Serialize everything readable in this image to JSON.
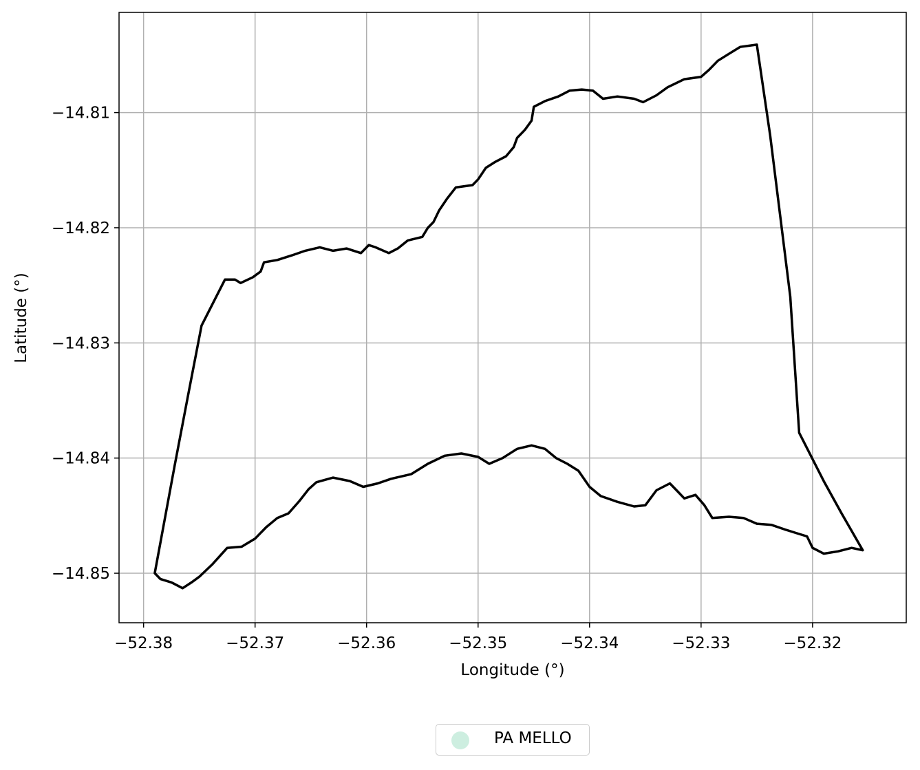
{
  "chart_data": {
    "type": "line",
    "xlabel": "Longitude (°)",
    "ylabel": "Latitude (°)",
    "xlim": [
      -52.3822,
      -52.3116
    ],
    "ylim": [
      -14.8543,
      -14.8013
    ],
    "xticks": [
      -52.38,
      -52.37,
      -52.36,
      -52.35,
      -52.34,
      -52.33,
      -52.32
    ],
    "xtick_labels": [
      "−52.38",
      "−52.37",
      "−52.36",
      "−52.35",
      "−52.34",
      "−52.33",
      "−52.32"
    ],
    "yticks": [
      -14.81,
      -14.82,
      -14.83,
      -14.84,
      -14.85
    ],
    "ytick_labels": [
      "−14.81",
      "−14.82",
      "−14.83",
      "−14.84",
      "−14.85"
    ],
    "grid": true,
    "legend_position": "bottom-center, below plot",
    "colors": {
      "outline": "#000000",
      "fill": "#cdeee0",
      "grid": "#b0b0b0"
    },
    "series": [
      {
        "name": "PA MELLO",
        "boundary": [
          [
            -52.379,
            -14.85
          ],
          [
            -52.3772,
            -14.8406
          ],
          [
            -52.376,
            -14.8345
          ],
          [
            -52.3748,
            -14.8285
          ],
          [
            -52.3727,
            -14.8245
          ],
          [
            -52.3718,
            -14.8245
          ],
          [
            -52.3713,
            -14.8248
          ],
          [
            -52.3702,
            -14.8243
          ],
          [
            -52.3695,
            -14.8238
          ],
          [
            -52.3692,
            -14.823
          ],
          [
            -52.368,
            -14.8228
          ],
          [
            -52.3667,
            -14.8224
          ],
          [
            -52.3655,
            -14.822
          ],
          [
            -52.3642,
            -14.8217
          ],
          [
            -52.363,
            -14.822
          ],
          [
            -52.3618,
            -14.8218
          ],
          [
            -52.3605,
            -14.8222
          ],
          [
            -52.3598,
            -14.8215
          ],
          [
            -52.3592,
            -14.8217
          ],
          [
            -52.358,
            -14.8222
          ],
          [
            -52.3572,
            -14.8218
          ],
          [
            -52.3563,
            -14.8211
          ],
          [
            -52.355,
            -14.8208
          ],
          [
            -52.3545,
            -14.82
          ],
          [
            -52.354,
            -14.8195
          ],
          [
            -52.3535,
            -14.8185
          ],
          [
            -52.3528,
            -14.8175
          ],
          [
            -52.352,
            -14.8165
          ],
          [
            -52.3505,
            -14.8163
          ],
          [
            -52.35,
            -14.8158
          ],
          [
            -52.3493,
            -14.8148
          ],
          [
            -52.3485,
            -14.8143
          ],
          [
            -52.3475,
            -14.8138
          ],
          [
            -52.3468,
            -14.813
          ],
          [
            -52.3465,
            -14.8122
          ],
          [
            -52.3458,
            -14.8115
          ],
          [
            -52.3452,
            -14.8107
          ],
          [
            -52.345,
            -14.8095
          ],
          [
            -52.344,
            -14.809
          ],
          [
            -52.3428,
            -14.8086
          ],
          [
            -52.3418,
            -14.8081
          ],
          [
            -52.3407,
            -14.808
          ],
          [
            -52.3397,
            -14.8081
          ],
          [
            -52.3388,
            -14.8088
          ],
          [
            -52.3375,
            -14.8086
          ],
          [
            -52.336,
            -14.8088
          ],
          [
            -52.3352,
            -14.8091
          ],
          [
            -52.334,
            -14.8085
          ],
          [
            -52.333,
            -14.8078
          ],
          [
            -52.3315,
            -14.8071
          ],
          [
            -52.33,
            -14.8069
          ],
          [
            -52.3293,
            -14.8063
          ],
          [
            -52.3285,
            -14.8055
          ],
          [
            -52.3275,
            -14.8049
          ],
          [
            -52.3265,
            -14.8043
          ],
          [
            -52.325,
            -14.8041
          ],
          [
            -52.3238,
            -14.812
          ],
          [
            -52.322,
            -14.826
          ],
          [
            -52.3212,
            -14.8378
          ],
          [
            -52.319,
            -14.842
          ],
          [
            -52.3174,
            -14.8448
          ],
          [
            -52.3155,
            -14.848
          ],
          [
            -52.3165,
            -14.8478
          ],
          [
            -52.3177,
            -14.8481
          ],
          [
            -52.319,
            -14.8483
          ],
          [
            -52.32,
            -14.8478
          ],
          [
            -52.3205,
            -14.8468
          ],
          [
            -52.3215,
            -14.8465
          ],
          [
            -52.3225,
            -14.8462
          ],
          [
            -52.3237,
            -14.8458
          ],
          [
            -52.325,
            -14.8457
          ],
          [
            -52.3262,
            -14.8452
          ],
          [
            -52.3275,
            -14.8451
          ],
          [
            -52.329,
            -14.8452
          ],
          [
            -52.3297,
            -14.8441
          ],
          [
            -52.3305,
            -14.8432
          ],
          [
            -52.3315,
            -14.8435
          ],
          [
            -52.3322,
            -14.8428
          ],
          [
            -52.3328,
            -14.8422
          ],
          [
            -52.334,
            -14.8428
          ],
          [
            -52.335,
            -14.8441
          ],
          [
            -52.336,
            -14.8442
          ],
          [
            -52.3375,
            -14.8438
          ],
          [
            -52.339,
            -14.8433
          ],
          [
            -52.34,
            -14.8425
          ],
          [
            -52.341,
            -14.8411
          ],
          [
            -52.342,
            -14.8405
          ],
          [
            -52.343,
            -14.84
          ],
          [
            -52.344,
            -14.8392
          ],
          [
            -52.3452,
            -14.8389
          ],
          [
            -52.3465,
            -14.8392
          ],
          [
            -52.3478,
            -14.84
          ],
          [
            -52.349,
            -14.8405
          ],
          [
            -52.35,
            -14.8399
          ],
          [
            -52.3515,
            -14.8396
          ],
          [
            -52.353,
            -14.8398
          ],
          [
            -52.3545,
            -14.8405
          ],
          [
            -52.356,
            -14.8414
          ],
          [
            -52.3578,
            -14.8418
          ],
          [
            -52.359,
            -14.8422
          ],
          [
            -52.3603,
            -14.8425
          ],
          [
            -52.3615,
            -14.842
          ],
          [
            -52.363,
            -14.8417
          ],
          [
            -52.3645,
            -14.8421
          ],
          [
            -52.3652,
            -14.8427
          ],
          [
            -52.366,
            -14.8437
          ],
          [
            -52.367,
            -14.8448
          ],
          [
            -52.368,
            -14.8452
          ],
          [
            -52.369,
            -14.846
          ],
          [
            -52.37,
            -14.847
          ],
          [
            -52.3712,
            -14.8477
          ],
          [
            -52.3725,
            -14.8478
          ],
          [
            -52.3738,
            -14.8492
          ],
          [
            -52.375,
            -14.8503
          ],
          [
            -52.3757,
            -14.8508
          ],
          [
            -52.3765,
            -14.8513
          ],
          [
            -52.3775,
            -14.8508
          ],
          [
            -52.3785,
            -14.8505
          ],
          [
            -52.379,
            -14.85
          ]
        ]
      }
    ]
  }
}
